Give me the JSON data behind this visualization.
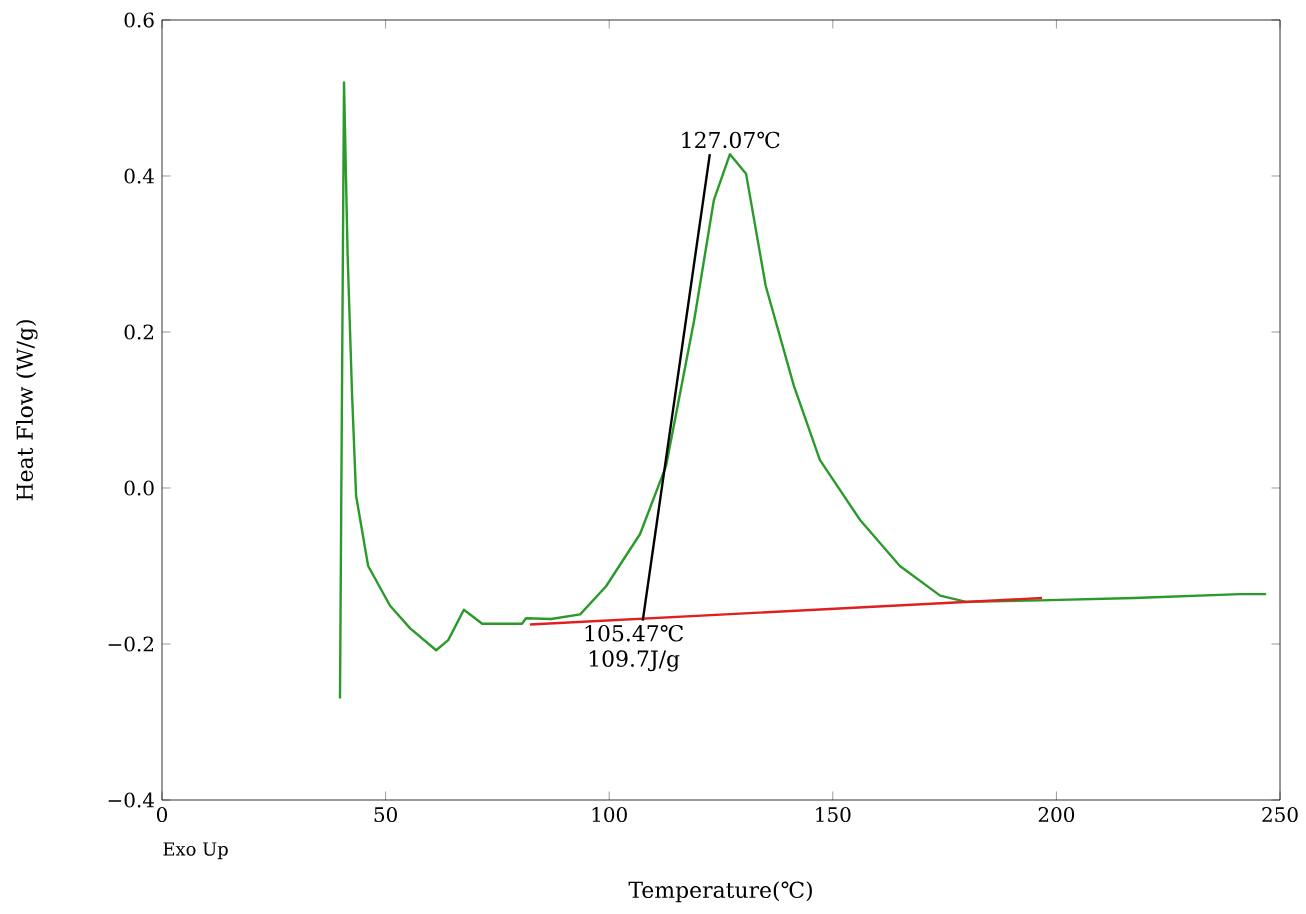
{
  "chart_data": {
    "type": "line",
    "xlabel": "Temperature(℃)",
    "ylabel": "Heat Flow (W/g)",
    "xlim": [
      0,
      250
    ],
    "ylim": [
      -0.4,
      0.6
    ],
    "xticks": [
      0,
      50,
      100,
      150,
      200,
      250
    ],
    "yticks": [
      {
        "value": -0.4,
        "label": "−0.4"
      },
      {
        "value": -0.2,
        "label": "−0.2"
      },
      {
        "value": 0,
        "label": "0.0"
      },
      {
        "value": 0.2,
        "label": "0.2"
      },
      {
        "value": 0.4,
        "label": "0.4"
      },
      {
        "value": 0.6,
        "label": "0.6"
      }
    ],
    "series": [
      {
        "color": "#2a9a2a",
        "x": [
          39.8,
          40.7,
          41.5,
          42.5,
          43.4,
          46.1,
          51,
          55.5,
          61.3,
          64,
          67.5,
          71.6,
          75.6,
          80.5,
          81.4,
          87,
          93.5,
          99.3,
          106.9,
          112.7,
          119,
          123.4,
          127,
          130.6,
          135,
          141.3,
          147.1,
          156.1,
          165,
          174,
          179.8,
          196.3,
          217.4,
          241,
          246.9
        ],
        "values": [
          -0.27,
          0.52,
          0.3,
          0.12,
          -0.01,
          -0.1,
          -0.151,
          -0.18,
          -0.208,
          -0.195,
          -0.156,
          -0.174,
          -0.174,
          -0.174,
          -0.167,
          -0.168,
          -0.162,
          -0.126,
          -0.059,
          0.028,
          0.215,
          0.369,
          0.428,
          0.403,
          0.259,
          0.131,
          0.036,
          -0.041,
          -0.1,
          -0.138,
          -0.146,
          -0.144,
          -0.141,
          -0.136,
          -0.136
        ]
      },
      {
        "color": "#e02020",
        "x": [
          82.3,
          196.8
        ],
        "values": [
          -0.175,
          -0.141
        ]
      },
      {
        "color": "#000000",
        "x": [
          107.5,
          122.5
        ],
        "values": [
          -0.17,
          0.428
        ]
      }
    ],
    "annotations": [
      {
        "text": "127.07℃",
        "x": 127.07,
        "y": 0.43
      },
      {
        "text": "105.47℃",
        "x": 105.47,
        "y": -0.17
      },
      "109.7J/g",
      "Exo Up"
    ]
  }
}
